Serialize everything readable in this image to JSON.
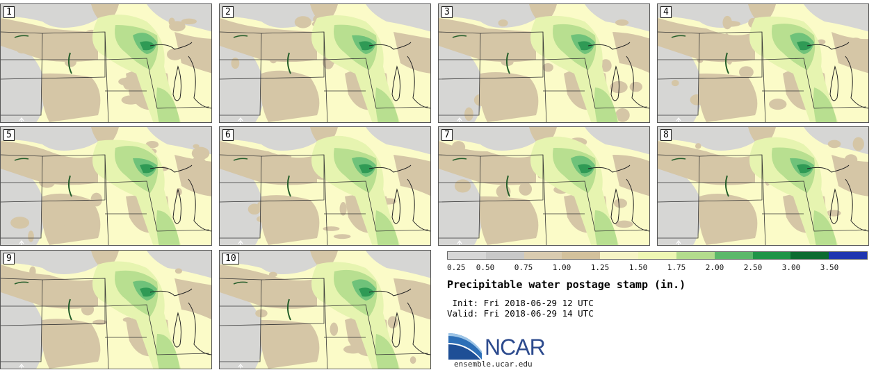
{
  "panels": [
    {
      "label": "1"
    },
    {
      "label": "2"
    },
    {
      "label": "3"
    },
    {
      "label": "4"
    },
    {
      "label": "5"
    },
    {
      "label": "6"
    },
    {
      "label": "7"
    },
    {
      "label": "8"
    },
    {
      "label": "9"
    },
    {
      "label": "10"
    }
  ],
  "colorbar": {
    "labels": [
      "0.25",
      "0.50",
      "0.75",
      "1.00",
      "1.25",
      "1.50",
      "1.75",
      "2.00",
      "2.50",
      "3.00",
      "3.50"
    ],
    "colors": [
      "#d7d7d7",
      "#c8c8c8",
      "#d9cbb0",
      "#d3c19c",
      "#f6f4c5",
      "#eef7b4",
      "#b3dc8d",
      "#5cb86a",
      "#1f9447",
      "#0c6b30",
      "#1f35b0"
    ]
  },
  "title": "Precipitable water postage stamp (in.)",
  "init": " Init: Fri 2018-06-29 12 UTC",
  "valid": "Valid: Fri 2018-06-29 14 UTC",
  "logo": {
    "text": "NCAR",
    "url": "ensemble.ucar.edu"
  },
  "colors": {
    "low_gray": "#d6d6d4",
    "tan": "#d5c6a6",
    "light_yellow": "#fbfbc8",
    "yellow_green": "#e6f4b0",
    "light_green": "#b8df90",
    "green": "#6fc27a",
    "dark_green": "#2f9a55",
    "border": "#333333"
  }
}
